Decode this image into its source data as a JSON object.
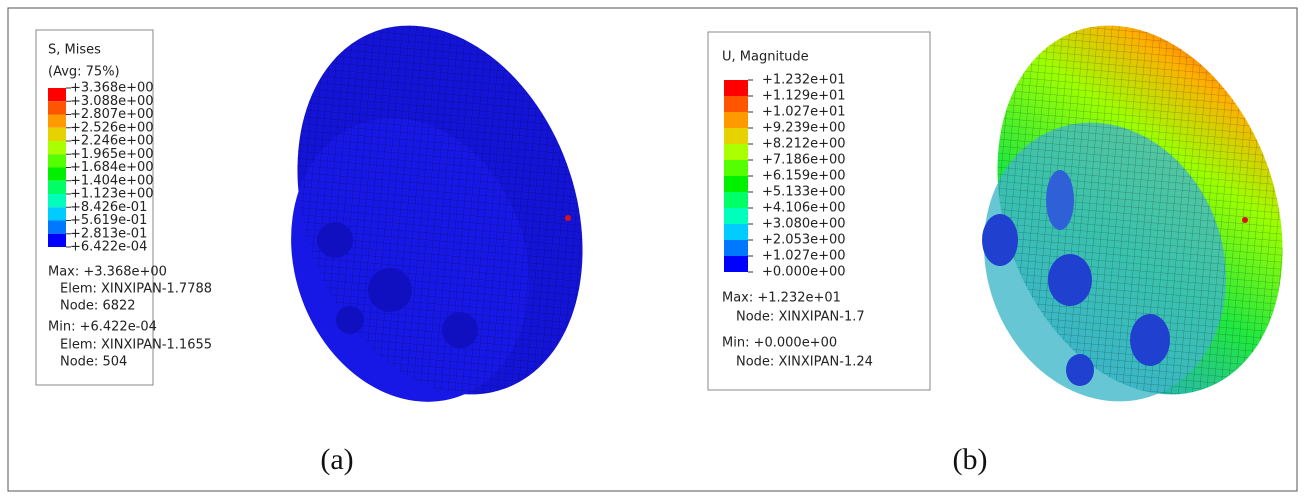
{
  "panels": [
    {
      "legend": {
        "title": "S, Mises",
        "subtitle": "(Avg: 75%)",
        "labels": [
          "+3.368e+00",
          "+3.088e+00",
          "+2.807e+00",
          "+2.526e+00",
          "+2.246e+00",
          "+1.965e+00",
          "+1.684e+00",
          "+1.404e+00",
          "+1.123e+00",
          "+8.426e-01",
          "+5.619e-01",
          "+2.813e-01",
          "+6.422e-04"
        ]
      },
      "info": [
        "Max: +3.368e+00",
        "Elem: XINXIPAN-1.7788",
        "Node: 6822",
        "Min: +6.422e-04",
        "Elem: XINXIPAN-1.1655",
        "Node: 504"
      ],
      "caption": "(a)"
    },
    {
      "legend": {
        "title": "U, Magnitude",
        "labels": [
          "+1.232e+01",
          "+1.129e+01",
          "+1.027e+01",
          "+9.239e+00",
          "+8.212e+00",
          "+7.186e+00",
          "+6.159e+00",
          "+5.133e+00",
          "+4.106e+00",
          "+3.080e+00",
          "+2.053e+00",
          "+1.027e+00",
          "+0.000e+00"
        ]
      },
      "info": [
        "Max: +1.232e+01",
        "Node: XINXIPAN-1.7",
        "Min: +0.000e+00",
        "Node: XINXIPAN-1.24"
      ],
      "caption": "(b)"
    }
  ]
}
